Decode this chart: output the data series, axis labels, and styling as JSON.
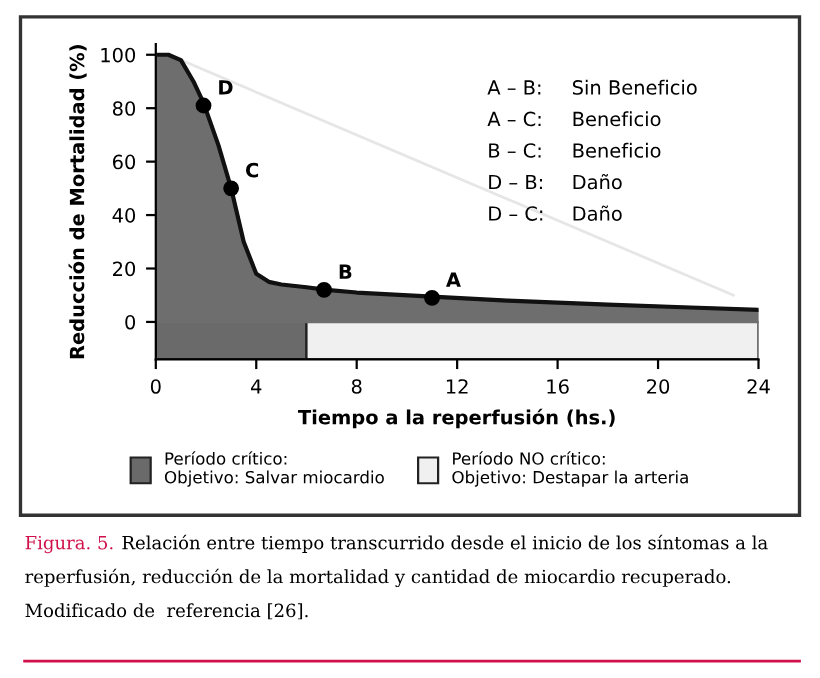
{
  "chart_data": {
    "type": "area",
    "xlabel": "Tiempo a la reperfusión (hs.)",
    "ylabel": "Reducción de Mortalidad (%)",
    "xlim": [
      0,
      24
    ],
    "xticks": [
      0,
      4,
      8,
      12,
      16,
      20,
      24
    ],
    "ylim": [
      -14,
      104
    ],
    "yticks": [
      0,
      20,
      40,
      60,
      80,
      100
    ],
    "grid": false,
    "legend": "bottom",
    "series": [
      {
        "color": "#6e6e6e",
        "x": [
          0,
          0.5,
          1,
          1.5,
          1.9,
          2.5,
          3,
          3.5,
          4,
          4.5,
          5,
          6,
          6.8,
          8,
          11,
          14,
          18,
          21,
          24
        ],
        "values": [
          100,
          100,
          98,
          90,
          82,
          66,
          50,
          30,
          18,
          15,
          14,
          13,
          12,
          11,
          9.5,
          8,
          6.5,
          5.5,
          4.5
        ]
      },
      {
        "type": "line",
        "color": "#e6e6e6",
        "x": [
          1,
          23
        ],
        "values": [
          98,
          10
        ]
      },
      {
        "type": "scatter",
        "color": "#000000",
        "marker": "circle",
        "x": [
          1.9,
          3,
          6.7,
          11
        ],
        "values": [
          81,
          50,
          12,
          9
        ]
      }
    ],
    "bands": [
      {
        "axis": "x",
        "from": 0,
        "to": 6,
        "label": "Período crítico:\nObjetivo: Salvar miocardio",
        "color": "#6a6a6a"
      },
      {
        "axis": "x",
        "from": 6,
        "to": 24,
        "label": "Período NO crítico:\nObjetivo: Destapar la arteria",
        "color": "#f0f0f0"
      }
    ],
    "annotations": [
      {
        "text": "D",
        "x": 1.9,
        "y": 81
      },
      {
        "text": "C",
        "x": 3,
        "y": 50
      },
      {
        "text": "B",
        "x": 6.7,
        "y": 12
      },
      {
        "text": "A",
        "x": 11,
        "y": 9
      },
      "A – B:\tSin Beneficio",
      "A – C:\tBeneficio",
      "B – C:\tBeneficio",
      "D – B:\tDaño",
      "D – C:\tDaño",
      "Figura. 5.",
      "Relación entre tiempo transcurrido desde el inicio de los síntomas a la reperfusión, reducción de la mortalidad y cantidad de miocardio recuperado. Modificado de  referencia [26]."
    ]
  }
}
